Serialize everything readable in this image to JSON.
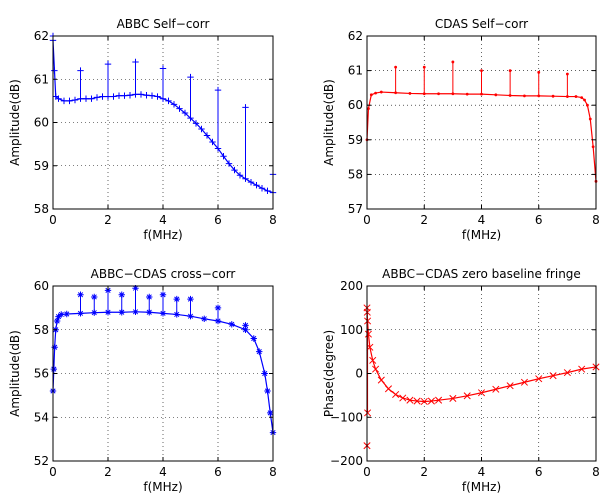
{
  "figure": {
    "background": "#ffffff"
  },
  "chart_data": [
    {
      "type": "scatter",
      "title": "ABBC Self−corr",
      "xlabel": "f(MHz)",
      "ylabel": "Amplitude(dB)",
      "xlim": [
        0,
        8
      ],
      "ylim": [
        58,
        62
      ],
      "xticks": [
        0,
        2,
        4,
        6,
        8
      ],
      "yticks": [
        58,
        59,
        60,
        61,
        62
      ],
      "grid": true,
      "marker": "+",
      "color": "#0000ff",
      "series": [
        {
          "x": [
            0.0,
            0.1,
            0.2,
            0.4,
            0.6,
            0.8,
            1.0,
            1.2,
            1.4,
            1.6,
            1.8,
            2.0,
            2.2,
            2.4,
            2.6,
            2.8,
            3.0,
            3.2,
            3.4,
            3.6,
            3.8,
            4.0,
            4.2,
            4.4,
            4.6,
            4.8,
            5.0,
            5.2,
            5.4,
            5.6,
            5.8,
            6.0,
            6.2,
            6.4,
            6.6,
            6.8,
            7.0,
            7.2,
            7.4,
            7.6,
            7.8,
            8.0
          ],
          "y": [
            61.9,
            60.6,
            60.55,
            60.5,
            60.5,
            60.52,
            60.55,
            60.55,
            60.55,
            60.58,
            60.6,
            60.6,
            60.6,
            60.62,
            60.62,
            60.63,
            60.65,
            60.65,
            60.63,
            60.62,
            60.6,
            60.55,
            60.5,
            60.42,
            60.32,
            60.22,
            60.1,
            59.98,
            59.85,
            59.7,
            59.55,
            59.4,
            59.22,
            59.05,
            58.9,
            58.78,
            58.7,
            58.62,
            58.55,
            58.48,
            58.42,
            58.38
          ]
        }
      ],
      "spikes": [
        {
          "x": 0.0,
          "y": 62.0
        },
        {
          "x": 0.05,
          "y": 61.2
        },
        {
          "x": 1.0,
          "y": 61.2
        },
        {
          "x": 2.0,
          "y": 61.35
        },
        {
          "x": 3.0,
          "y": 61.4
        },
        {
          "x": 4.0,
          "y": 61.25
        },
        {
          "x": 5.0,
          "y": 61.05
        },
        {
          "x": 6.0,
          "y": 60.75
        },
        {
          "x": 7.0,
          "y": 60.35
        },
        {
          "x": 8.0,
          "y": 58.8
        }
      ]
    },
    {
      "type": "line",
      "title": "CDAS Self−corr",
      "xlabel": "f(MHz)",
      "ylabel": "Amplitude(dB)",
      "xlim": [
        0,
        8
      ],
      "ylim": [
        57,
        62
      ],
      "xticks": [
        0,
        2,
        4,
        6,
        8
      ],
      "yticks": [
        57,
        58,
        59,
        60,
        61,
        62
      ],
      "grid": true,
      "marker": ".",
      "color": "#ff0000",
      "series": [
        {
          "x": [
            0.0,
            0.05,
            0.15,
            0.3,
            0.5,
            1.0,
            1.5,
            2.0,
            2.5,
            3.0,
            3.5,
            4.0,
            4.5,
            5.0,
            5.5,
            6.0,
            6.5,
            7.0,
            7.3,
            7.5,
            7.6,
            7.7,
            7.8,
            7.9,
            8.0
          ],
          "y": [
            59.0,
            59.9,
            60.3,
            60.35,
            60.38,
            60.36,
            60.34,
            60.33,
            60.33,
            60.33,
            60.32,
            60.32,
            60.3,
            60.28,
            60.27,
            60.27,
            60.26,
            60.25,
            60.25,
            60.22,
            60.15,
            60.0,
            59.6,
            58.8,
            57.8
          ]
        }
      ],
      "spikes": [
        {
          "x": 1.0,
          "y": 61.1
        },
        {
          "x": 2.0,
          "y": 61.1
        },
        {
          "x": 3.0,
          "y": 61.25
        },
        {
          "x": 4.0,
          "y": 61.0
        },
        {
          "x": 5.0,
          "y": 61.0
        },
        {
          "x": 6.0,
          "y": 60.95
        },
        {
          "x": 7.0,
          "y": 60.9
        }
      ]
    },
    {
      "type": "scatter",
      "title": "ABBC−CDAS cross−corr",
      "xlabel": "f(MHz)",
      "ylabel": "Amplitude(dB)",
      "xlim": [
        0,
        8
      ],
      "ylim": [
        52,
        60
      ],
      "xticks": [
        0,
        2,
        4,
        6,
        8
      ],
      "yticks": [
        52,
        54,
        56,
        58,
        60
      ],
      "grid": true,
      "marker": "*",
      "color": "#0000ff",
      "series": [
        {
          "x": [
            0.0,
            0.03,
            0.06,
            0.1,
            0.15,
            0.2,
            0.3,
            0.5,
            1.0,
            1.5,
            2.0,
            2.5,
            3.0,
            3.5,
            4.0,
            4.5,
            5.0,
            5.5,
            6.0,
            6.5,
            7.0,
            7.3,
            7.5,
            7.7,
            7.8,
            7.9,
            8.0
          ],
          "y": [
            55.2,
            56.2,
            57.2,
            58.0,
            58.4,
            58.6,
            58.7,
            58.72,
            58.75,
            58.78,
            58.8,
            58.8,
            58.82,
            58.8,
            58.75,
            58.7,
            58.62,
            58.5,
            58.4,
            58.25,
            58.0,
            57.6,
            57.0,
            56.0,
            55.2,
            54.2,
            53.3
          ]
        }
      ],
      "spikes": [
        {
          "x": 1.0,
          "y": 59.6
        },
        {
          "x": 1.5,
          "y": 59.5
        },
        {
          "x": 2.0,
          "y": 59.8
        },
        {
          "x": 2.5,
          "y": 59.6
        },
        {
          "x": 3.0,
          "y": 59.9
        },
        {
          "x": 3.5,
          "y": 59.5
        },
        {
          "x": 4.0,
          "y": 59.6
        },
        {
          "x": 4.5,
          "y": 59.4
        },
        {
          "x": 5.0,
          "y": 59.4
        },
        {
          "x": 6.0,
          "y": 59.0
        },
        {
          "x": 7.0,
          "y": 58.2
        }
      ]
    },
    {
      "type": "scatter",
      "title": "ABBC−CDAS zero baseline fringe",
      "xlabel": "f(MHz)",
      "ylabel": "Phase(degree)",
      "xlim": [
        0,
        8
      ],
      "ylim": [
        -200,
        200
      ],
      "xticks": [
        0,
        2,
        4,
        6,
        8
      ],
      "yticks": [
        -200,
        -100,
        0,
        100,
        200
      ],
      "grid": true,
      "marker": "x",
      "color": "#ff0000",
      "series": [
        {
          "x": [
            0.0,
            0.02,
            0.05,
            0.1,
            0.2,
            0.3,
            0.5,
            0.75,
            1.0,
            1.25,
            1.5,
            1.75,
            2.0,
            2.25,
            2.5,
            3.0,
            3.5,
            4.0,
            4.5,
            5.0,
            5.5,
            6.0,
            6.5,
            7.0,
            7.5,
            8.0
          ],
          "y": [
            150,
            120,
            90,
            60,
            30,
            10,
            -15,
            -35,
            -48,
            -56,
            -61,
            -63,
            -64,
            -63,
            -61,
            -57,
            -51,
            -44,
            -36,
            -28,
            -20,
            -12,
            -5,
            2,
            10,
            15
          ]
        }
      ],
      "spikes": [
        {
          "x": 0.0,
          "y": -165
        },
        {
          "x": 0.01,
          "y": 140
        },
        {
          "x": 0.02,
          "y": -90
        }
      ]
    }
  ]
}
